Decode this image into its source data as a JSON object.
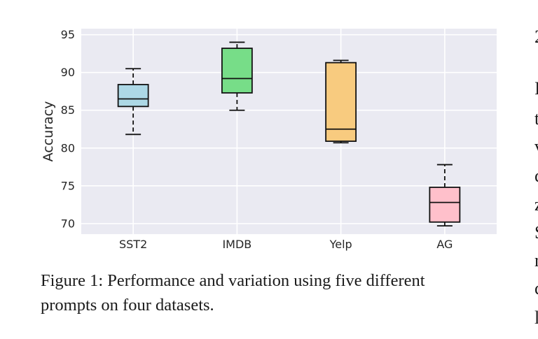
{
  "chart_data": {
    "type": "box",
    "title": "",
    "xlabel": "",
    "ylabel": "Accuracy",
    "ylim": [
      68.6,
      95.8
    ],
    "yticks": [
      70,
      75,
      80,
      85,
      90,
      95
    ],
    "categories": [
      "SST2",
      "IMDB",
      "Yelp",
      "AG"
    ],
    "boxes": [
      {
        "category": "SST2",
        "whisker_low": 81.8,
        "q1": 85.5,
        "median": 86.5,
        "q3": 88.4,
        "whisker_high": 90.5,
        "color": "#add8e6"
      },
      {
        "category": "IMDB",
        "whisker_low": 85.0,
        "q1": 87.3,
        "median": 89.2,
        "q3": 93.2,
        "whisker_high": 94.0,
        "color": "#77dd88"
      },
      {
        "category": "Yelp",
        "whisker_low": 80.7,
        "q1": 80.9,
        "median": 82.5,
        "q3": 91.3,
        "whisker_high": 91.6,
        "color": "#f8cb7f"
      },
      {
        "category": "AG",
        "whisker_low": 69.7,
        "q1": 70.2,
        "median": 72.8,
        "q3": 74.8,
        "whisker_high": 77.8,
        "color": "#ffc0cb"
      }
    ],
    "grid": true,
    "background": "#eaeaf2"
  },
  "caption": {
    "line1": "Figure 1: Performance and variation using five different",
    "line2": "prompts on four datasets."
  },
  "side_fragments": [
    "2",
    "I",
    "t",
    "v",
    "c",
    "z",
    "S",
    "r",
    "c",
    "l"
  ]
}
